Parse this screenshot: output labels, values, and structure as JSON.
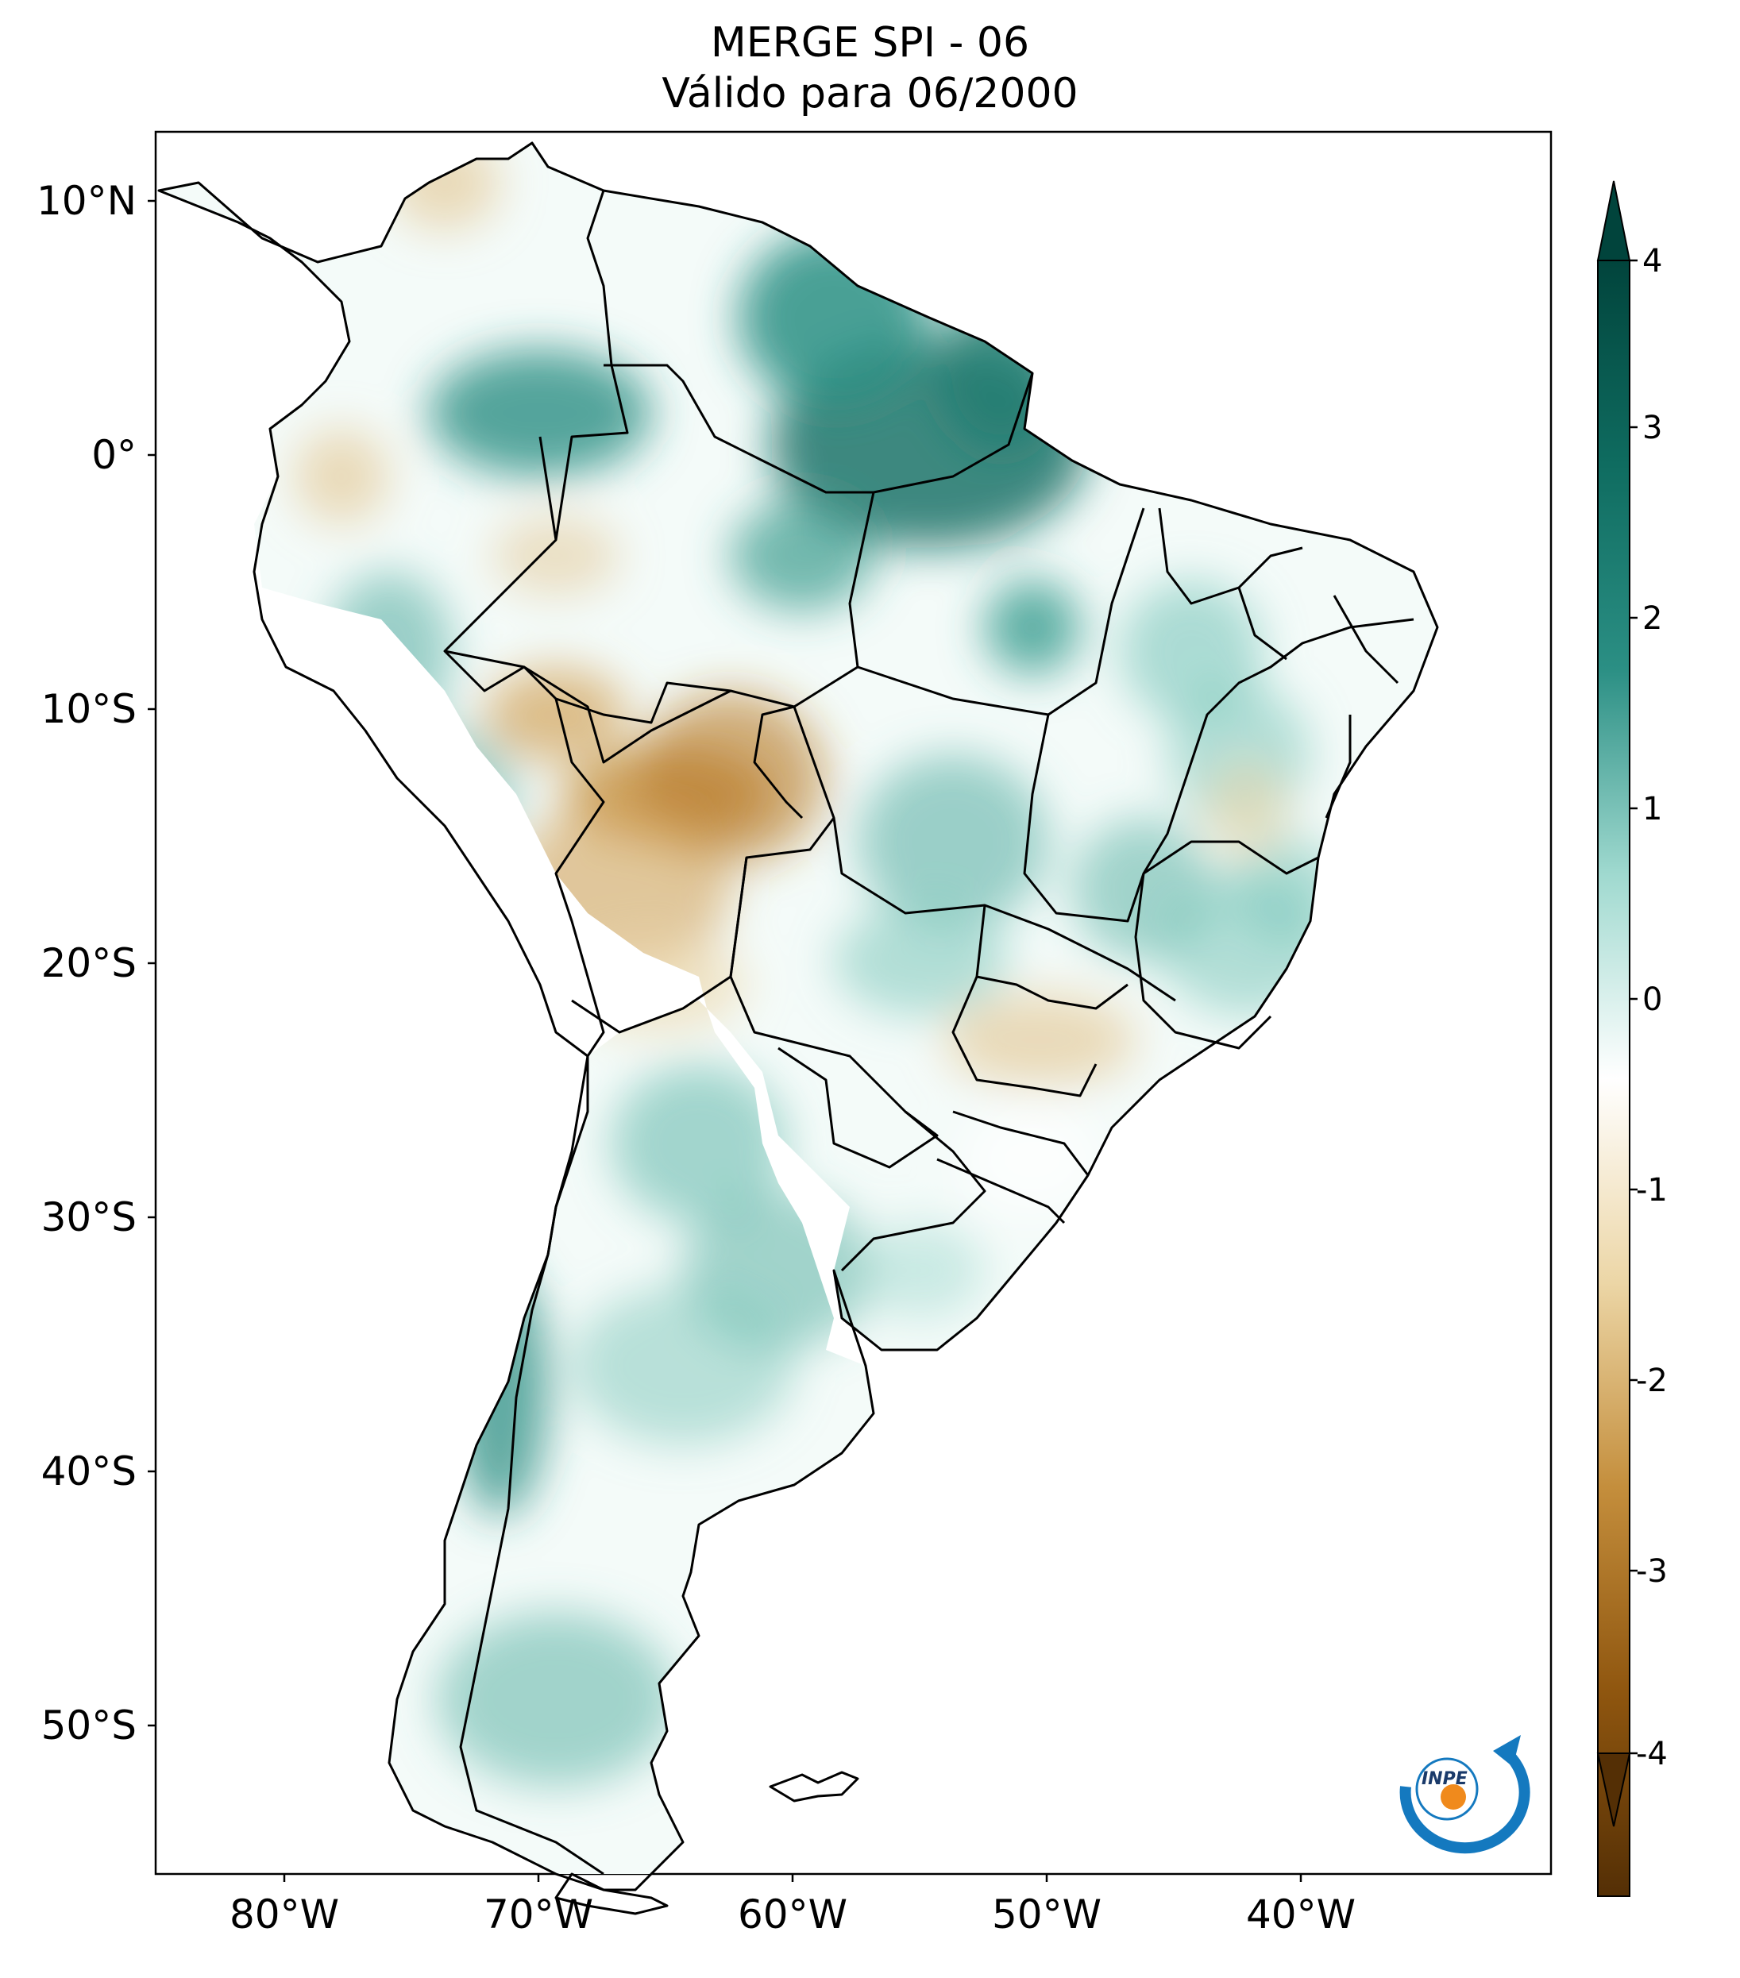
{
  "title": {
    "line1": "MERGE   SPI - 06",
    "line2": "Válido para 06/2000"
  },
  "map": {
    "region": "South America",
    "variable": "SPI - 06",
    "lat_ticks": [
      "10°N",
      "0°",
      "10°S",
      "20°S",
      "30°S",
      "40°S",
      "50°S"
    ],
    "lon_ticks": [
      "80°W",
      "70°W",
      "60°W",
      "50°W",
      "40°W"
    ]
  },
  "colorbar": {
    "min": -4,
    "max": 4,
    "labels": [
      "4",
      "3",
      "2",
      "1",
      "0",
      "-1",
      "-2",
      "-3",
      "-4"
    ],
    "colors": {
      "dark_teal": "#01443c",
      "teal": "#2b8f84",
      "light_teal": "#9fd9cf",
      "white": "#ffffff",
      "light_tan": "#ecd6a6",
      "tan": "#c48e3c",
      "dark_brown": "#542f05"
    }
  },
  "logo": {
    "text": "INPE"
  }
}
